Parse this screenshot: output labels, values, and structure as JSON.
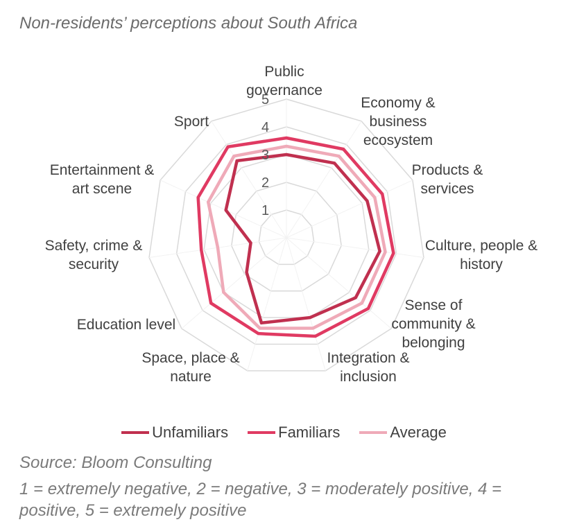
{
  "page": {
    "title": "Non-residents’ perceptions about South Africa",
    "source": "Source: Bloom Consulting",
    "note": "1 = extremely negative, 2 = negative, 3 = moderately positive, 4 = positive, 5 = extremely positive"
  },
  "chart_data": {
    "type": "radar",
    "title": "Non-residents’ perceptions about South Africa",
    "categories": [
      [
        "Public",
        "governance"
      ],
      [
        "Economy &",
        "business",
        "ecosystem"
      ],
      [
        "Products &",
        "services"
      ],
      [
        "Culture, people &",
        "history"
      ],
      [
        "Sense of",
        "community &",
        "belonging"
      ],
      [
        "Integration &",
        "inclusion"
      ],
      [
        "Space, place &",
        "nature"
      ],
      [
        "Education level"
      ],
      [
        "Safety, crime &",
        "security"
      ],
      [
        "Entertainment &",
        "art scene"
      ],
      [
        "Sport"
      ]
    ],
    "ticks": [
      "1",
      "2",
      "3",
      "4",
      "5"
    ],
    "rlim": [
      0,
      5
    ],
    "grid": true,
    "legend_position": "bottom",
    "series": [
      {
        "name": "Unfamiliars",
        "color": "#c0304f",
        "values": [
          3.0,
          3.2,
          3.2,
          3.4,
          3.3,
          3.0,
          3.2,
          1.9,
          1.3,
          2.4,
          3.3
        ]
      },
      {
        "name": "Familiars",
        "color": "#e03a62",
        "values": [
          3.6,
          3.8,
          3.8,
          3.9,
          3.9,
          3.7,
          3.6,
          3.6,
          3.1,
          3.5,
          3.9
        ]
      },
      {
        "name": "Average",
        "color": "#efaab8",
        "values": [
          3.3,
          3.5,
          3.5,
          3.6,
          3.6,
          3.4,
          3.4,
          3.0,
          2.5,
          3.1,
          3.5
        ]
      }
    ]
  }
}
